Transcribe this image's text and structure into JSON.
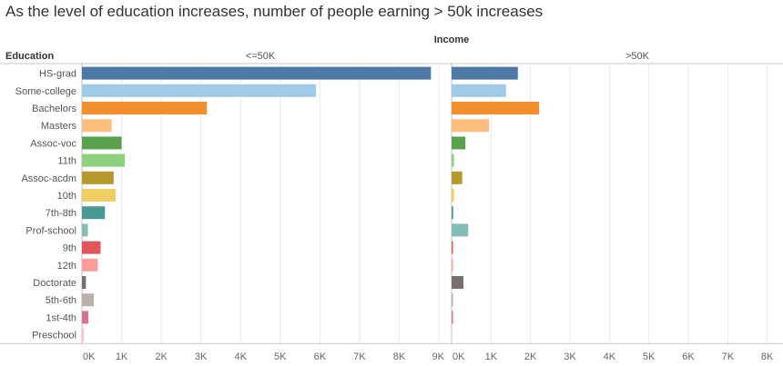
{
  "title": "As the level of education increases, number of people earning > 50k increases",
  "chart_data": {
    "type": "bar",
    "orientation": "horizontal",
    "row_header": "Education",
    "column_header": "Income",
    "categories": [
      "HS-grad",
      "Some-college",
      "Bachelors",
      "Masters",
      "Assoc-voc",
      "11th",
      "Assoc-acdm",
      "10th",
      "7th-8th",
      "Prof-school",
      "9th",
      "12th",
      "Doctorate",
      "5th-6th",
      "1st-4th",
      "Preschool"
    ],
    "colors": [
      "#4e79a7",
      "#a0cbe8",
      "#f28e2b",
      "#ffbe7d",
      "#59a14f",
      "#8cd17d",
      "#b6992d",
      "#f1ce63",
      "#499894",
      "#86bcb6",
      "#e15759",
      "#ff9d9a",
      "#79706e",
      "#bab0ac",
      "#d37295",
      "#fabfd2"
    ],
    "panels": [
      {
        "name": "<=50K",
        "values": [
          8800,
          5900,
          3150,
          750,
          1000,
          1080,
          800,
          850,
          580,
          150,
          470,
          400,
          100,
          300,
          160,
          50
        ]
      },
      {
        "name": ">50K",
        "values": [
          1680,
          1380,
          2220,
          950,
          350,
          60,
          270,
          60,
          40,
          420,
          30,
          30,
          300,
          15,
          10,
          0
        ]
      }
    ],
    "xlim": [
      0,
      9000
    ],
    "x_ticks": [
      "0K",
      "1K",
      "2K",
      "3K",
      "4K",
      "5K",
      "6K",
      "7K",
      "8K",
      "9K"
    ],
    "grid": true
  }
}
